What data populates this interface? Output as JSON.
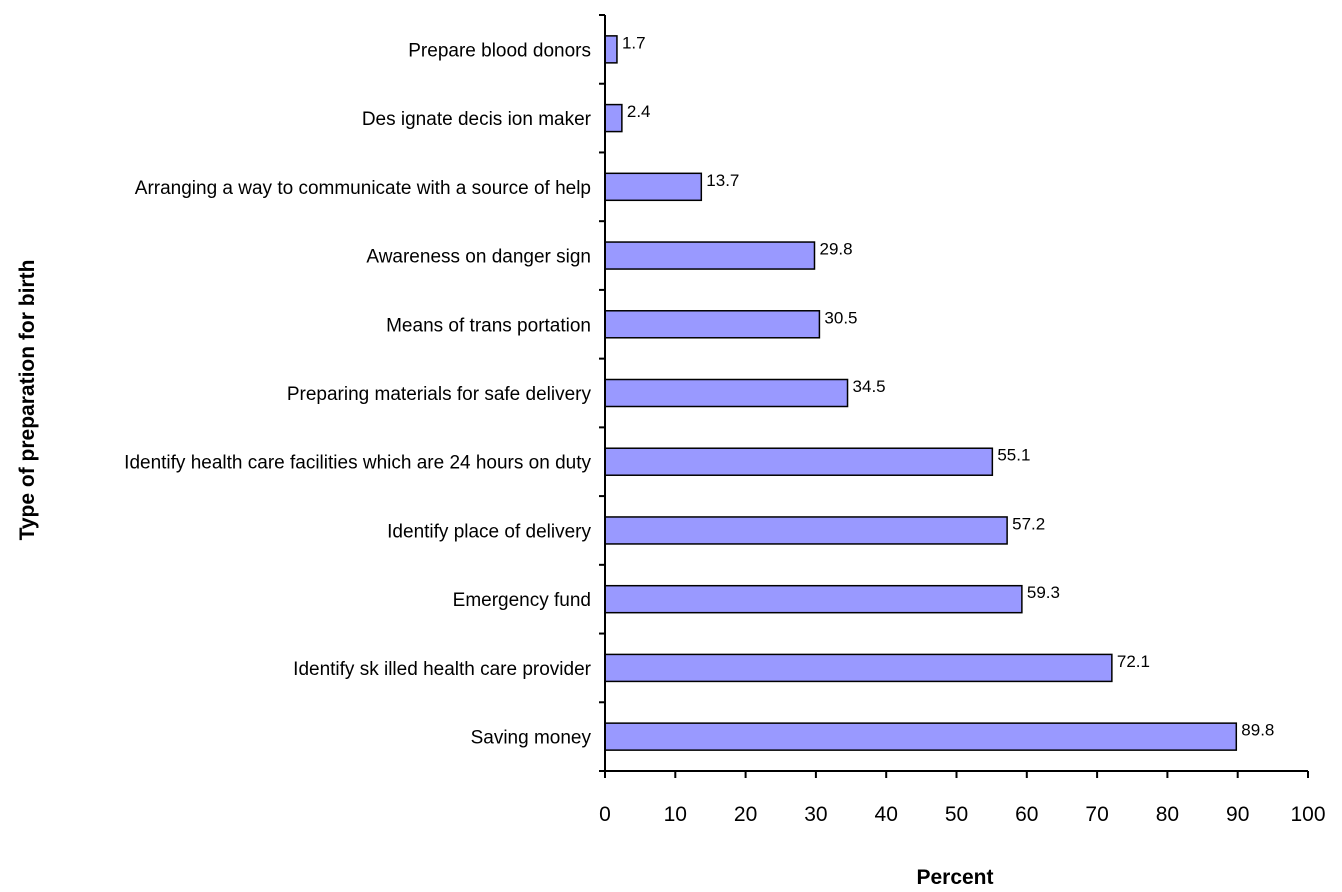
{
  "chart_data": {
    "type": "bar",
    "orientation": "horizontal",
    "categories": [
      "Prepare blood donors",
      "Des ignate decis ion maker",
      "Arranging a way to communicate with a source of help",
      "Awareness on danger sign",
      "Means of trans portation",
      "Preparing materials for safe delivery",
      "Identify health care facilities which are 24 hours on duty",
      "Identify place of delivery",
      "Emergency fund",
      "Identify sk illed health care provider",
      "Saving money"
    ],
    "values": [
      1.7,
      2.4,
      13.7,
      29.8,
      30.5,
      34.5,
      55.1,
      57.2,
      59.3,
      72.1,
      89.8
    ],
    "value_labels": [
      "1.7",
      "2.4",
      "13.7",
      "29.8",
      "30.5",
      "34.5",
      "55.1",
      "57.2",
      "59.3",
      "72.1",
      "89.8"
    ],
    "title": "",
    "xlabel": "Percent",
    "ylabel": "Type of preparation for birth",
    "xlim": [
      0,
      100
    ],
    "xticks": [
      "0",
      "10",
      "20",
      "30",
      "40",
      "50",
      "60",
      "70",
      "80",
      "90",
      "100"
    ],
    "grid": false,
    "legend": "none",
    "colors": {
      "bar_fill": "#9999ff",
      "bar_stroke": "#000000"
    }
  }
}
